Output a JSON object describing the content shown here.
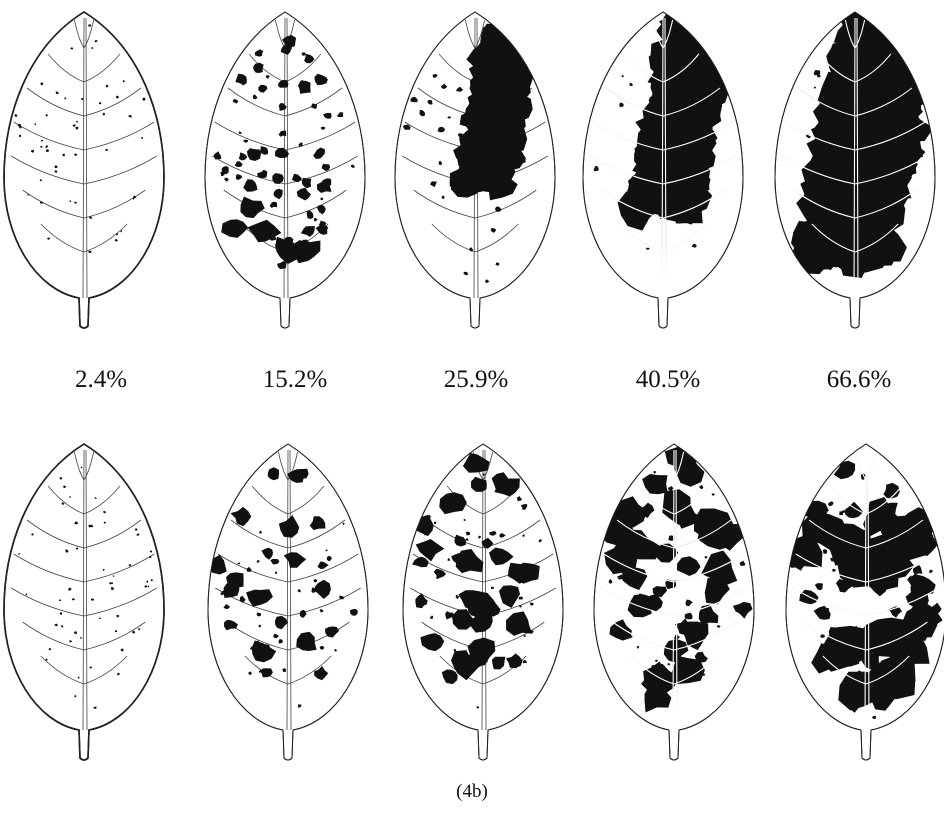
{
  "figure": {
    "caption": "(4b)",
    "severity_labels": [
      "2.4%",
      "15.2%",
      "25.9%",
      "40.5%",
      "66.6%"
    ]
  },
  "colors": {
    "outline": "#222222",
    "lesion": "#111111",
    "background": "#ffffff"
  },
  "row_top": {
    "leaves": [
      {
        "severity": "2.4%",
        "damage": 0.024,
        "pattern": "scattered-specks"
      },
      {
        "severity": "15.2%",
        "damage": 0.152,
        "pattern": "scattered-spots"
      },
      {
        "severity": "25.9%",
        "damage": 0.259,
        "pattern": "clustered-upper-right"
      },
      {
        "severity": "40.5%",
        "damage": 0.405,
        "pattern": "clustered-upper-right"
      },
      {
        "severity": "66.6%",
        "damage": 0.666,
        "pattern": "clustered-upper-right"
      }
    ]
  },
  "row_bottom": {
    "leaves": [
      {
        "severity": "2.4%",
        "damage": 0.024,
        "pattern": "scattered-specks"
      },
      {
        "severity": "15.2%",
        "damage": 0.152,
        "pattern": "distributed-spots"
      },
      {
        "severity": "25.9%",
        "damage": 0.259,
        "pattern": "distributed-spots"
      },
      {
        "severity": "40.5%",
        "damage": 0.405,
        "pattern": "distributed-spots"
      },
      {
        "severity": "66.6%",
        "damage": 0.666,
        "pattern": "distributed-spots"
      }
    ]
  }
}
